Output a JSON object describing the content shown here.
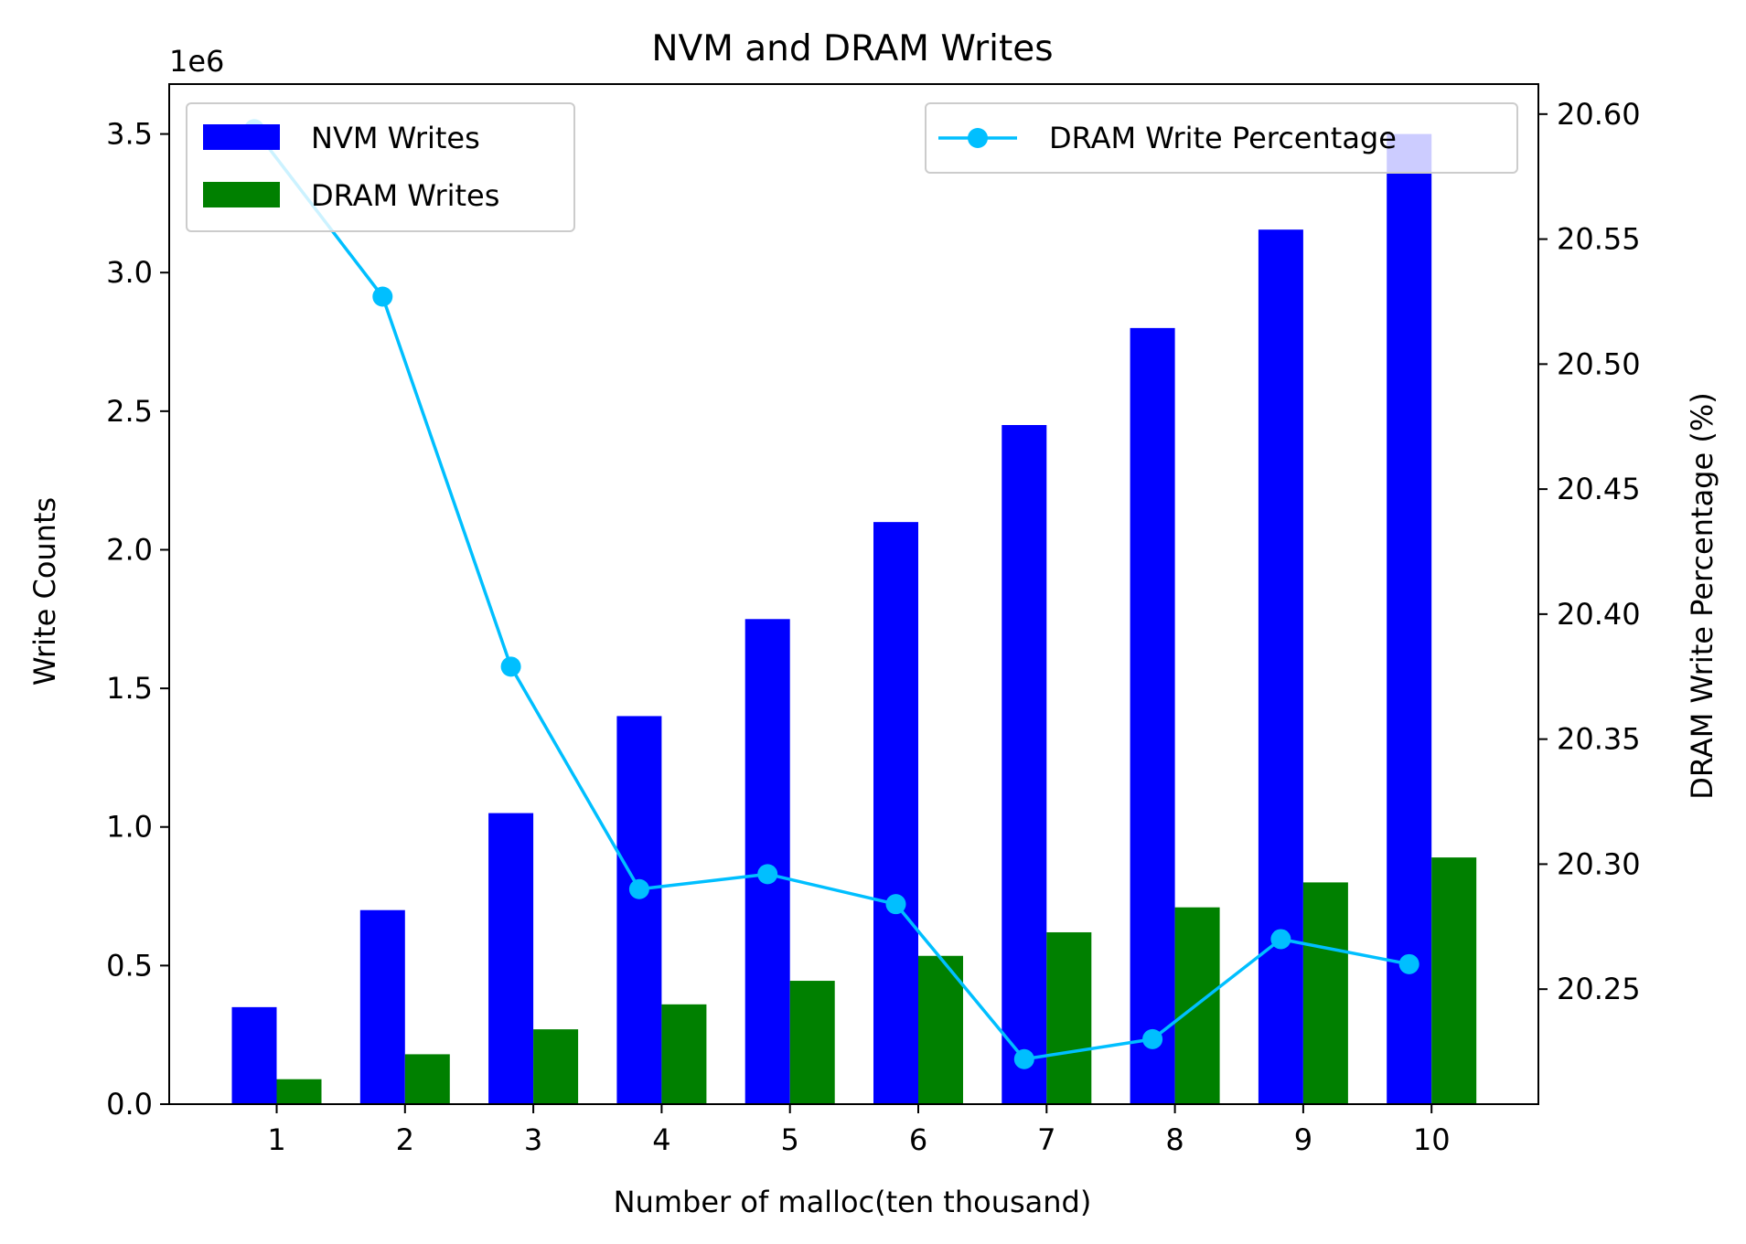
{
  "chart_data": {
    "type": "bar",
    "title": "NVM and DRAM Writes",
    "xlabel": "Number of malloc(ten thousand)",
    "ylabel": "Write Counts",
    "y_offset_label": "1e6",
    "y2label": "DRAM Write Percentage (%)",
    "categories": [
      "1",
      "2",
      "3",
      "4",
      "5",
      "6",
      "7",
      "8",
      "9",
      "10"
    ],
    "ylim": [
      0,
      3.68
    ],
    "yticks": [
      "0.0",
      "0.5",
      "1.0",
      "1.5",
      "2.0",
      "2.5",
      "3.0",
      "3.5"
    ],
    "y2lim": [
      20.204,
      20.612
    ],
    "y2ticks": [
      "20.25",
      "20.30",
      "20.35",
      "20.40",
      "20.45",
      "20.50",
      "20.55",
      "20.60"
    ],
    "grid": false,
    "series": [
      {
        "name": "NVM Writes",
        "kind": "bar",
        "axis": "left",
        "color": "#0000ff",
        "values": [
          0.35,
          0.7,
          1.05,
          1.4,
          1.75,
          2.1,
          2.45,
          2.8,
          3.155,
          3.5
        ]
      },
      {
        "name": "DRAM Writes",
        "kind": "bar",
        "axis": "left",
        "color": "#008000",
        "values": [
          0.09,
          0.18,
          0.27,
          0.36,
          0.445,
          0.535,
          0.62,
          0.71,
          0.8,
          0.89
        ]
      },
      {
        "name": "DRAM Write Percentage",
        "kind": "line",
        "axis": "right",
        "color": "#00bfff",
        "values": [
          20.594,
          20.527,
          20.379,
          20.29,
          20.296,
          20.284,
          20.222,
          20.23,
          20.27,
          20.26
        ]
      }
    ],
    "legend_left_placement": "upper-left",
    "legend_right_placement": "upper-right"
  }
}
